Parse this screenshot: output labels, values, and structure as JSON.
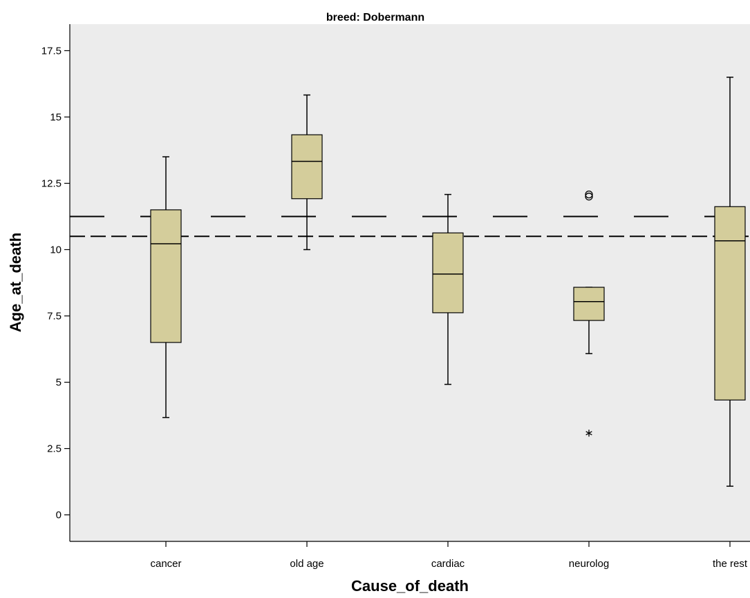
{
  "chart_data": {
    "type": "box",
    "title": "breed: Dobermann",
    "xlabel": "Cause_of_death",
    "ylabel": "Age_at_death",
    "ylim": [
      -1.0,
      18.5
    ],
    "yticks": [
      0,
      2.5,
      5,
      7.5,
      10,
      12.5,
      15,
      17.5
    ],
    "ytick_labels": [
      "0",
      "2.5",
      "5",
      "7.5",
      "10",
      "12.5",
      "15",
      "17.5"
    ],
    "categories": [
      "cancer",
      "old age",
      "cardiac",
      "neurolog",
      "the rest"
    ],
    "boxes": [
      {
        "category": "cancer",
        "whisker_low": 3.67,
        "q1": 6.5,
        "median": 10.22,
        "q3": 11.5,
        "whisker_high": 13.5,
        "outliers": [],
        "extremes": []
      },
      {
        "category": "old age",
        "whisker_low": 10.0,
        "q1": 11.92,
        "median": 13.33,
        "q3": 14.33,
        "whisker_high": 15.83,
        "outliers": [],
        "extremes": []
      },
      {
        "category": "cardiac",
        "whisker_low": 4.92,
        "q1": 7.62,
        "median": 9.08,
        "q3": 10.63,
        "whisker_high": 12.08,
        "outliers": [],
        "extremes": []
      },
      {
        "category": "neurolog",
        "whisker_low": 6.08,
        "q1": 7.33,
        "median": 8.04,
        "q3": 8.58,
        "whisker_high": 8.58,
        "outliers": [
          12.0,
          12.08
        ],
        "extremes": [
          3.08
        ]
      },
      {
        "category": "the rest",
        "whisker_low": 1.08,
        "q1": 4.33,
        "median": 10.33,
        "q3": 11.62,
        "whisker_high": 16.5,
        "outliers": [],
        "extremes": []
      }
    ],
    "reference_lines": [
      {
        "value": 11.25,
        "style": "long-dash"
      },
      {
        "value": 10.5,
        "style": "short-dash"
      }
    ],
    "grid": false,
    "colors": {
      "plot_background": "#ececec",
      "box_fill": "#d4cd9b",
      "stroke": "#000000"
    }
  }
}
